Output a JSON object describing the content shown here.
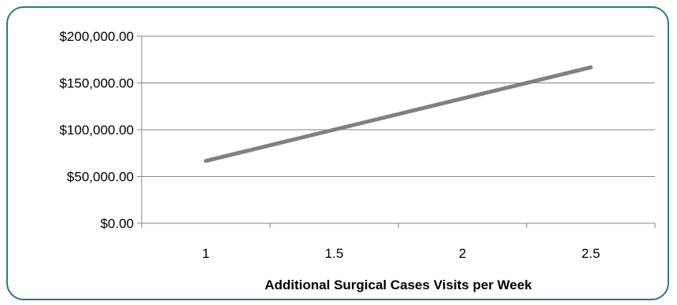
{
  "chart_data": {
    "type": "line",
    "title": "",
    "xlabel": "Additional Surgical Cases Visits per Week",
    "ylabel": "",
    "x": [
      1,
      1.5,
      2,
      2.5
    ],
    "x_tick_labels": [
      "1",
      "1.5",
      "2",
      "2.5"
    ],
    "series": [
      {
        "values": [
          66667,
          100000,
          133333,
          166667
        ]
      }
    ],
    "y_ticks": [
      0,
      50000,
      100000,
      150000,
      200000
    ],
    "y_tick_labels": [
      "$0.00",
      "$50,000.00",
      "$100,000.00",
      "$150,000.00",
      "$200,000.00"
    ],
    "ylim": [
      0,
      200000
    ],
    "grid": true,
    "legend": "none",
    "colors": {
      "line": "#808080",
      "grid": "#868686",
      "frame": "#2b7a86"
    }
  }
}
